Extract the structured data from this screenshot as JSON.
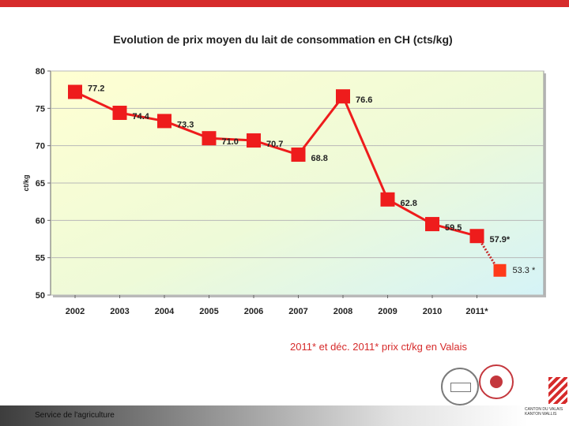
{
  "chart_data": {
    "type": "line",
    "title": "Evolution de prix moyen du lait de consommation en CH (cts/kg)",
    "xlabel": "",
    "ylabel": "ct/kg",
    "ylim": [
      50,
      80
    ],
    "yticks": [
      "50",
      "55",
      "60",
      "65",
      "70",
      "75",
      "80"
    ],
    "grid": true,
    "categories": [
      "2002",
      "2003",
      "2004",
      "2005",
      "2006",
      "2007",
      "2008",
      "2009",
      "2010",
      "2011*"
    ],
    "series": [
      {
        "name": "CH",
        "color": "#ee1c1c",
        "values": [
          77.2,
          74.4,
          73.3,
          71.0,
          70.7,
          68.8,
          76.6,
          62.8,
          59.5,
          57.9
        ],
        "labels": [
          "77.2",
          "74.4",
          "73.3",
          "71.0",
          "70.7",
          "68.8",
          "76.6",
          "62.8",
          "59.5",
          "57.9*"
        ]
      }
    ],
    "extra_point": {
      "value": 53.3,
      "label": "53.3 *",
      "color": "#ff3a1a"
    }
  },
  "note": "2011* et déc. 2011* prix  ct/kg en Valais",
  "footer": {
    "service": "Service de l'agriculture",
    "canton": "CANTON DU VALAIS KANTON WALLIS"
  }
}
